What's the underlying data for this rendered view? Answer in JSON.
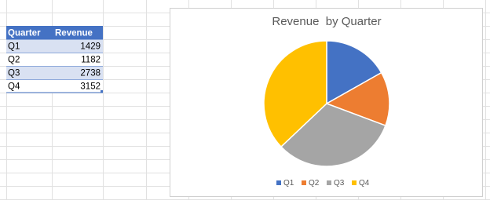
{
  "table": {
    "header": [
      "Quarter",
      "Revenue"
    ],
    "rows": [
      [
        "Q1",
        "1429"
      ],
      [
        "Q2",
        "1182"
      ],
      [
        "Q3",
        "2738"
      ],
      [
        "Q4",
        "3152"
      ]
    ]
  },
  "chart_data": {
    "type": "pie",
    "title": "Revenue  by Quarter",
    "categories": [
      "Q1",
      "Q2",
      "Q3",
      "Q4"
    ],
    "values": [
      1429,
      1182,
      2738,
      3152
    ],
    "colors": [
      "#4472c4",
      "#ed7d31",
      "#a5a5a5",
      "#ffc000"
    ],
    "legend": "bottom"
  }
}
